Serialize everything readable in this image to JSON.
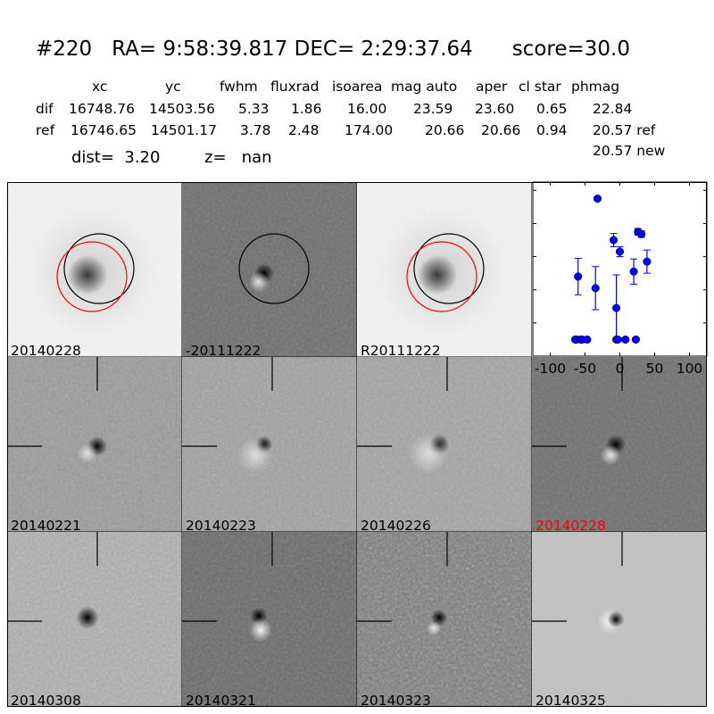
{
  "title": {
    "id": "#220",
    "ra": "RA= 9:58:39.817",
    "dec": "DEC= 2:29:37.64",
    "score": "score=30.0"
  },
  "table": {
    "columns": [
      "xc",
      "yc",
      "fwhm",
      "fluxrad",
      "isoarea",
      "mag auto",
      "aper",
      "cl star",
      "phmag"
    ],
    "rows": [
      {
        "label": "dif",
        "values": [
          "16748.76",
          "14503.56",
          "5.33",
          "1.86",
          "16.00",
          "23.59",
          "23.60",
          "0.65",
          "22.84"
        ]
      },
      {
        "label": "ref",
        "values": [
          "16746.65",
          "14501.17",
          "3.78",
          "2.48",
          "174.00",
          "20.66",
          "20.66",
          "0.94",
          "20.57 ref"
        ]
      }
    ],
    "extra": "20.57 new",
    "dist": "dist=  3.20",
    "z": "z=   nan"
  },
  "panels": [
    {
      "label": "20140228",
      "label_color": "#000000"
    },
    {
      "label": "-20111222",
      "label_color": "#000000"
    },
    {
      "label": "R20111222",
      "label_color": "#000000"
    },
    {
      "label": "20140221",
      "label_color": "#000000"
    },
    {
      "label": "20140223",
      "label_color": "#000000"
    },
    {
      "label": "20140226",
      "label_color": "#000000"
    },
    {
      "label": "20140228",
      "label_color": "#ff0000"
    },
    {
      "label": "20140308",
      "label_color": "#000000"
    },
    {
      "label": "20140321",
      "label_color": "#000000"
    },
    {
      "label": "20140323",
      "label_color": "#000000"
    },
    {
      "label": "20140325",
      "label_color": "#000000"
    }
  ],
  "chart_data": {
    "type": "scatter",
    "title": "",
    "xlabel": "",
    "ylabel": "",
    "xlim": [
      -125,
      125
    ],
    "ylim": [
      26,
      20.75
    ],
    "y_inverted": true,
    "xticks": [
      -100,
      -50,
      0,
      50,
      100
    ],
    "yticks": [
      21,
      22,
      23,
      24,
      25,
      26
    ],
    "color": "#0000ff",
    "points": [
      {
        "x": -32,
        "y": 21.25,
        "err": 0.05
      },
      {
        "x": -60,
        "y": 23.6,
        "err": 0.55
      },
      {
        "x": -35,
        "y": 23.95,
        "err": 0.65
      },
      {
        "x": -9,
        "y": 22.5,
        "err": 0.2
      },
      {
        "x": 0,
        "y": 22.85,
        "err": 0.15
      },
      {
        "x": -5,
        "y": 24.55,
        "err": 1.0
      },
      {
        "x": 20,
        "y": 23.45,
        "err": 0.38
      },
      {
        "x": 26,
        "y": 22.25,
        "err": 0.1
      },
      {
        "x": 31,
        "y": 22.32,
        "err": 0.1
      },
      {
        "x": 39,
        "y": 23.15,
        "err": 0.35
      },
      {
        "x": -64,
        "y": 25.5,
        "err": 0.05
      },
      {
        "x": -62,
        "y": 25.5,
        "err": 0.05
      },
      {
        "x": -56,
        "y": 25.5,
        "err": 0.05
      },
      {
        "x": -54,
        "y": 25.5,
        "err": 0.05
      },
      {
        "x": -47,
        "y": 25.5,
        "err": 0.05
      },
      {
        "x": -5,
        "y": 25.5,
        "err": 0.05
      },
      {
        "x": -3,
        "y": 25.5,
        "err": 0.05
      },
      {
        "x": 8,
        "y": 25.5,
        "err": 0.05
      },
      {
        "x": 23,
        "y": 25.5,
        "err": 0.05
      }
    ]
  }
}
